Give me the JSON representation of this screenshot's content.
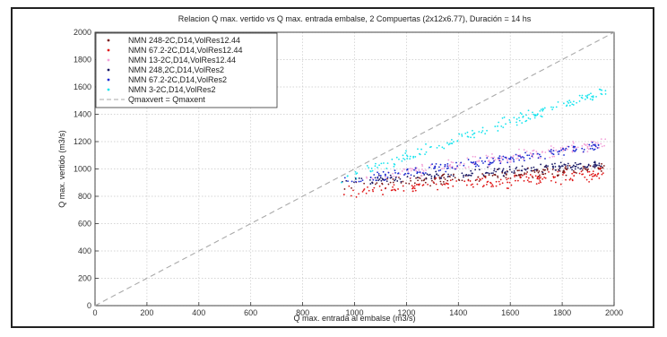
{
  "chart_data": {
    "type": "scatter",
    "title": "Relacion Q max. vertido vs Q max. entrada embalse, 2 Compuertas (2x12x6.77), Duración = 14 hs",
    "xlabel": "Q max. entrada al embalse (m3/s)",
    "ylabel": "Q max. vertido (m3/s)",
    "xlim": [
      0,
      2000
    ],
    "ylim": [
      0,
      2000
    ],
    "xticks": [
      0,
      200,
      400,
      600,
      800,
      1000,
      1200,
      1400,
      1600,
      1800,
      2000
    ],
    "yticks": [
      0,
      200,
      400,
      600,
      800,
      1000,
      1200,
      1400,
      1600,
      1800,
      2000
    ],
    "grid": true,
    "legend_position": "top-left",
    "series": [
      {
        "name": "NMN 248-2C,D14,VolRes12.44",
        "color": "#7a1a1a",
        "x_range": [
          940,
          1970
        ],
        "y_fit": [
          [
            1000,
            880
          ],
          [
            1970,
            1010
          ]
        ],
        "spread": 35
      },
      {
        "name": "NMN 67.2-2C,D14,VolRes12.44",
        "color": "#e01818",
        "x_range": [
          950,
          1970
        ],
        "y_fit": [
          [
            1000,
            840
          ],
          [
            1970,
            965
          ]
        ],
        "spread": 45
      },
      {
        "name": "NMN 13-2C,D14,VolRes12.44",
        "color": "#f2a0d8",
        "x_range": [
          1000,
          1970
        ],
        "y_fit": [
          [
            1000,
            920
          ],
          [
            1970,
            1190
          ]
        ],
        "spread": 40
      },
      {
        "name": "NMN 248,2C,D14,VolRes2",
        "color": "#1a1a66",
        "x_range": [
          940,
          1960
        ],
        "y_fit": [
          [
            1000,
            905
          ],
          [
            1960,
            1035
          ]
        ],
        "spread": 30
      },
      {
        "name": "NMN 67.2-2C,D14,VolRes2",
        "color": "#1a2ad0",
        "x_range": [
          950,
          1960
        ],
        "y_fit": [
          [
            1000,
            920
          ],
          [
            1960,
            1170
          ]
        ],
        "spread": 35
      },
      {
        "name": "NMN 3-2C,D14,VolRes2",
        "color": "#19e4ee",
        "x_range": [
          940,
          1970
        ],
        "y_fit": [
          [
            950,
            935
          ],
          [
            1970,
            1570
          ]
        ],
        "spread": 40
      }
    ],
    "reference_line": {
      "name": "Qmaxvert = Qmaxent",
      "color": "#aaaaaa",
      "x": [
        0,
        2000
      ],
      "y": [
        0,
        2000
      ]
    }
  }
}
